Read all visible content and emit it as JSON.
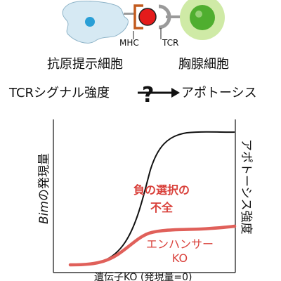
{
  "cells": {
    "apc_label": "抗原提示細胞",
    "thymocyte_label": "胸腺細胞",
    "mhc_label": "MHC",
    "tcr_label": "TCR"
  },
  "relation": {
    "left": "TCRシグナル強度",
    "mark": "?",
    "right": "アポトーシス"
  },
  "plot": {
    "y_left_label_italic": "Bim",
    "y_left_label_rest": "の発現量",
    "y_right_label": "アポトーシス強度",
    "annotation_line1": "負の選択の",
    "annotation_line2": "不全",
    "red_curve_line1": "エンハンサー",
    "red_curve_line2": "KO",
    "baseline_label": "遺伝子KO (発現量=0)"
  },
  "colors": {
    "red_accent": "#d9403a",
    "red_curve": "#e0605a",
    "mhc_bracket": "#c25a1e",
    "apc_fill": "#d6e9f3",
    "apc_nucleus": "#2a9fd6",
    "tcell_outer": "#cfeaa6",
    "tcell_nucleus": "#4fae2f",
    "mhc_peptide": "#e41b1b"
  }
}
